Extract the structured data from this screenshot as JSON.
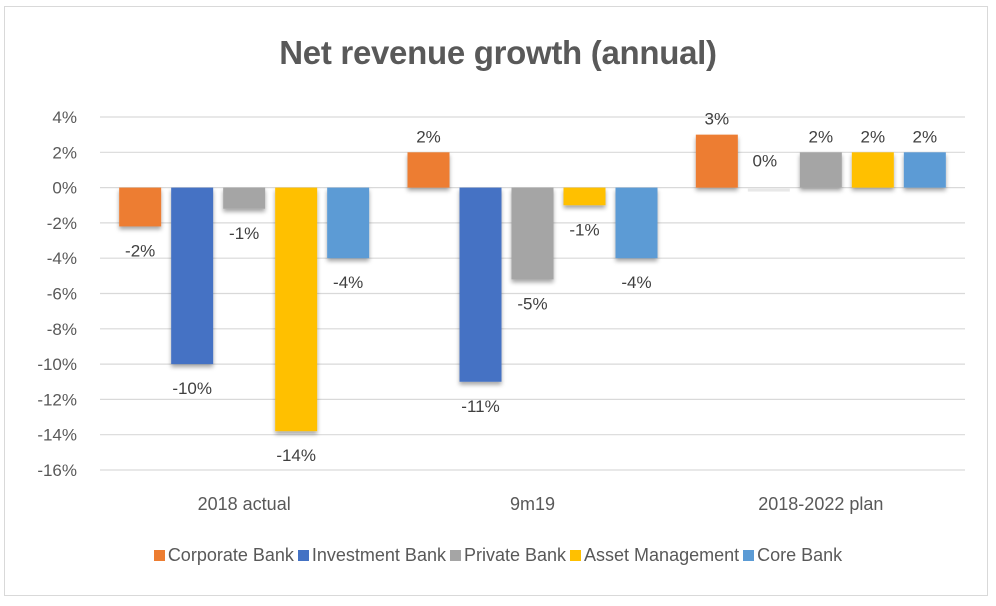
{
  "chart_data": {
    "type": "bar",
    "title": "Net revenue growth (annual)",
    "xlabel": "",
    "ylabel": "",
    "ylim": [
      -16,
      4
    ],
    "y_ticks": [
      4,
      2,
      0,
      -2,
      -4,
      -6,
      -8,
      -10,
      -12,
      -14,
      -16
    ],
    "y_tick_labels": [
      "4%",
      "2%",
      "0%",
      "-2%",
      "-4%",
      "-6%",
      "-8%",
      "-10%",
      "-12%",
      "-14%",
      "-16%"
    ],
    "grid": true,
    "legend_position": "bottom",
    "categories": [
      "2018 actual",
      "9m19",
      "2018-2022 plan"
    ],
    "series": [
      {
        "name": "Corporate Bank",
        "color": "#ed7d31",
        "values": [
          -2.2,
          2,
          3
        ],
        "labels": [
          "-2%",
          "2%",
          "3%"
        ]
      },
      {
        "name": "Investment Bank",
        "color": "#4472c4",
        "values": [
          -10,
          -11,
          0
        ],
        "labels": [
          "-10%",
          "-11%",
          "0%"
        ]
      },
      {
        "name": "Private Bank",
        "color": "#a5a5a5",
        "values": [
          -1.2,
          -5.2,
          2
        ],
        "labels": [
          "-1%",
          "-5%",
          "2%"
        ]
      },
      {
        "name": "Asset Management",
        "color": "#ffc000",
        "values": [
          -13.8,
          -1,
          2
        ],
        "labels": [
          "-14%",
          "-1%",
          "2%"
        ]
      },
      {
        "name": "Core Bank",
        "color": "#5b9bd5",
        "values": [
          -4,
          -4,
          2
        ],
        "labels": [
          "-4%",
          "-4%",
          "2%"
        ]
      }
    ]
  }
}
